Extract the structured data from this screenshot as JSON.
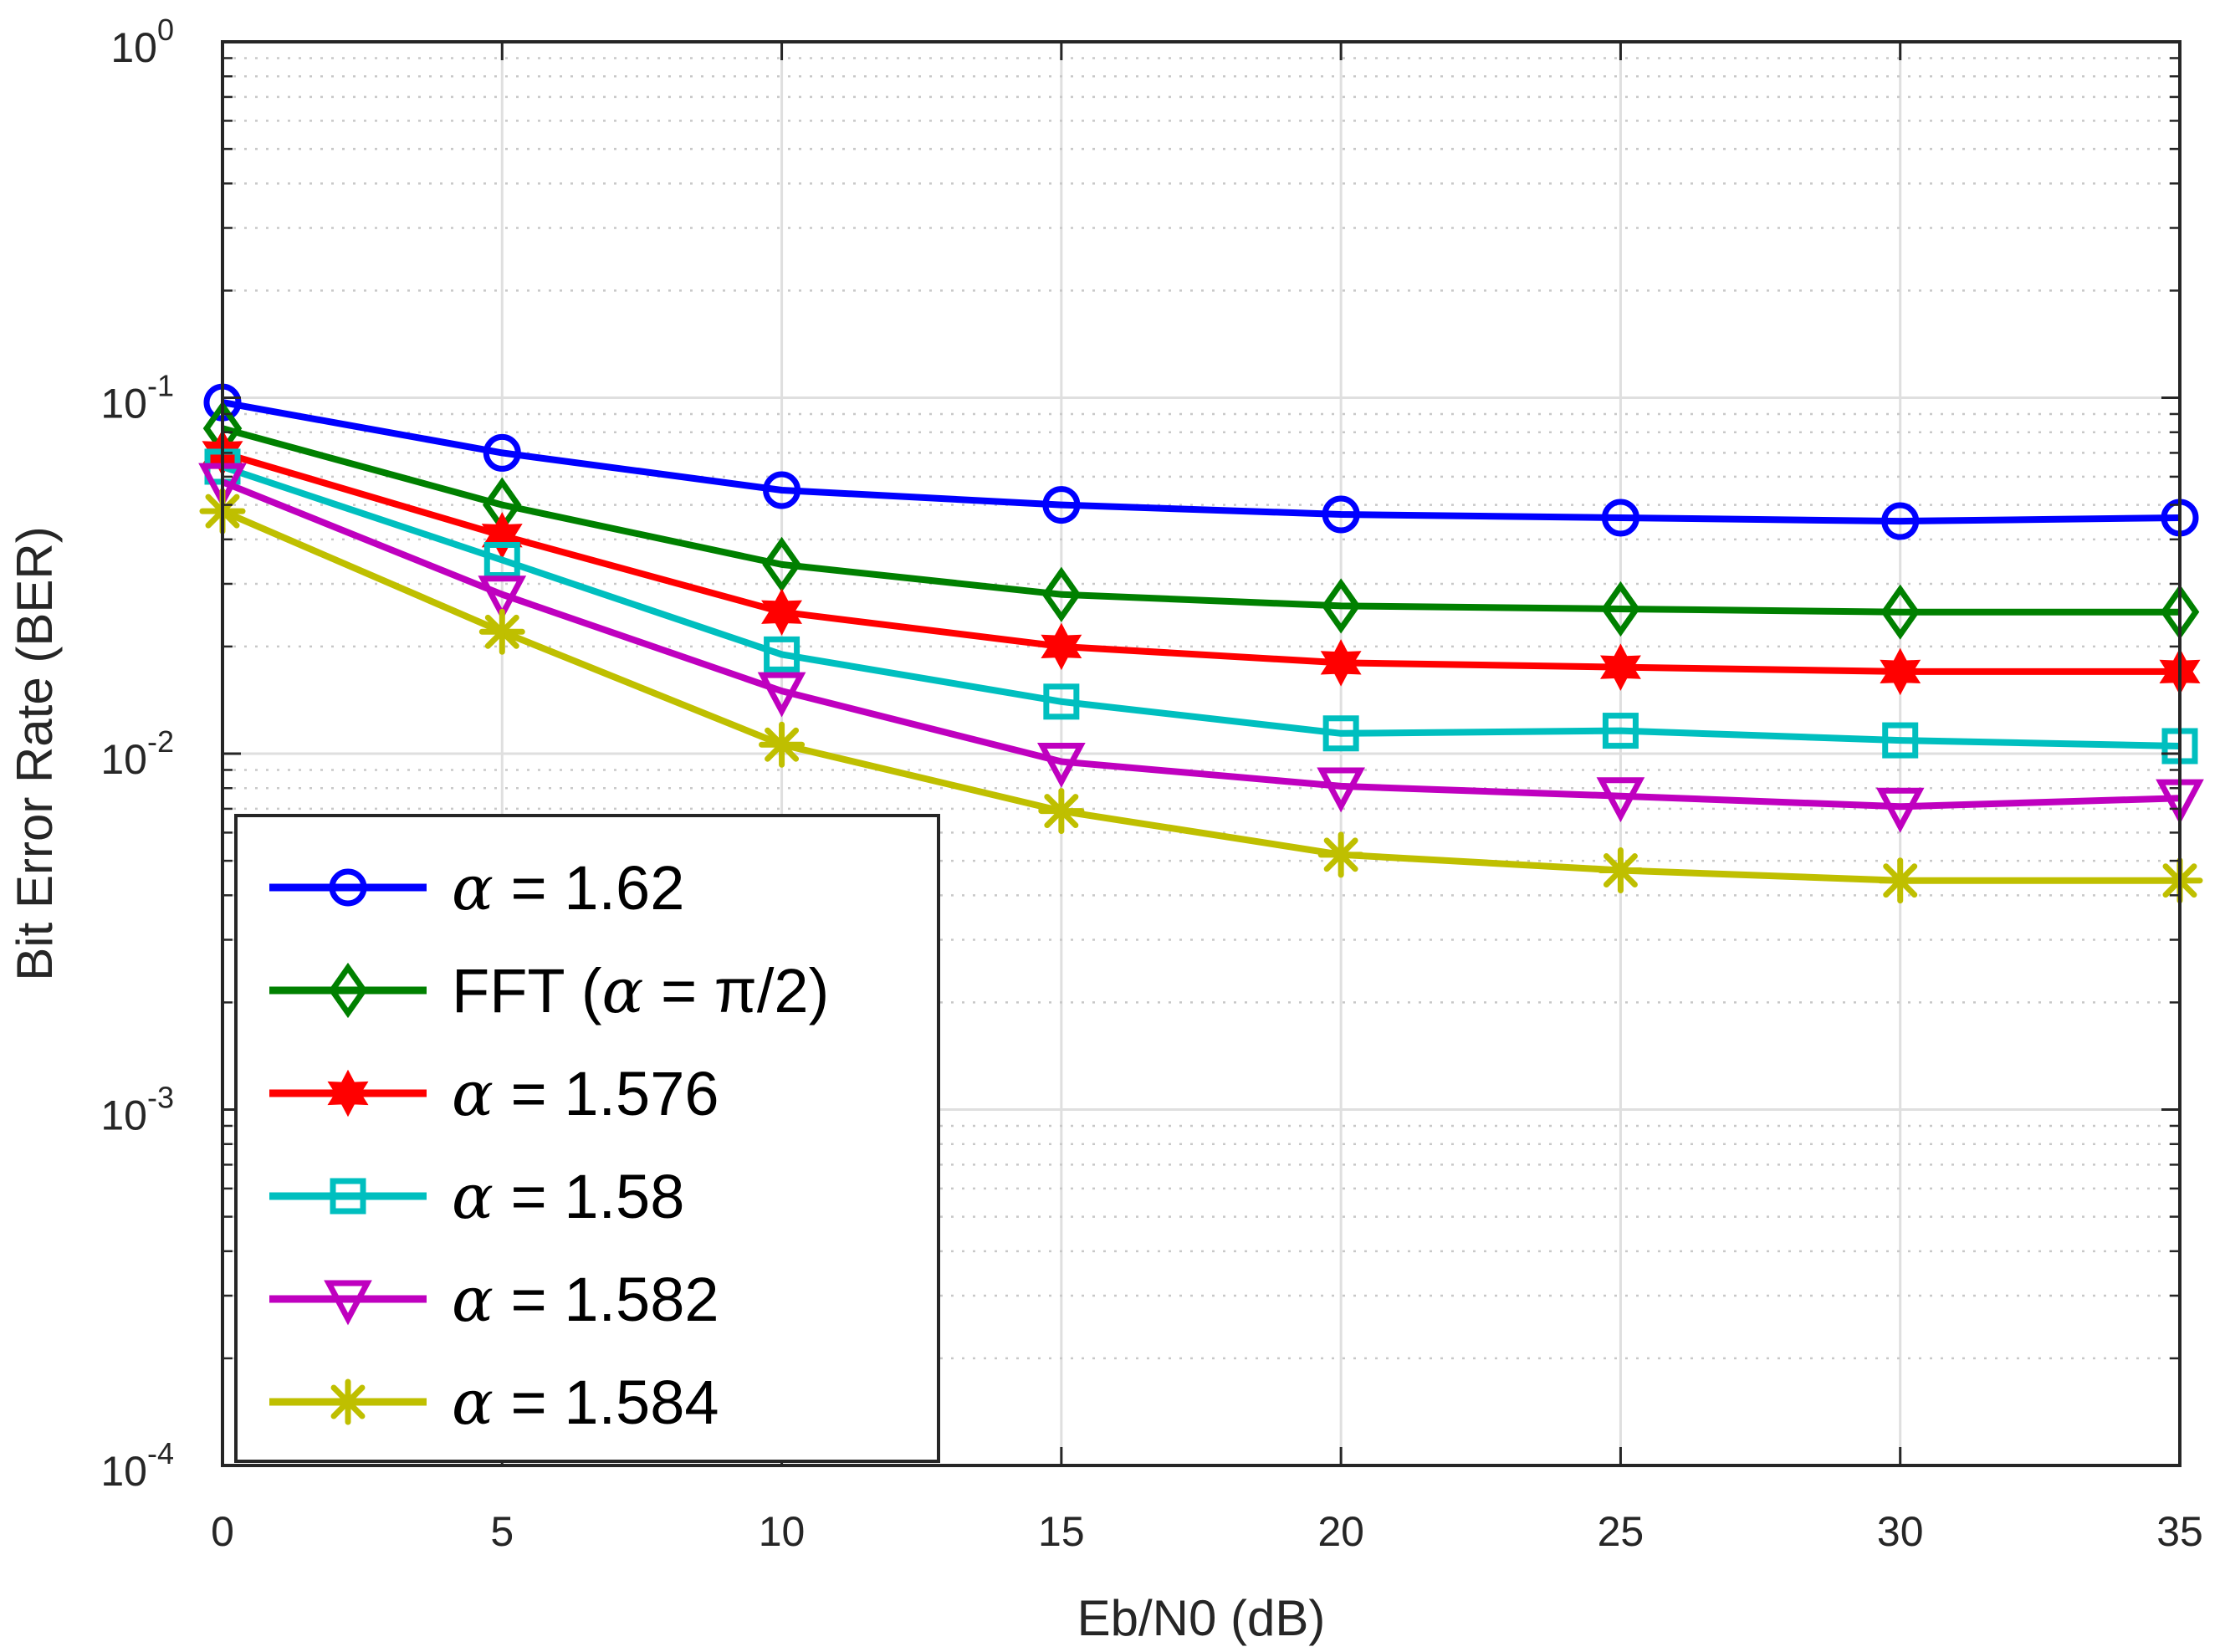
{
  "chart_data": {
    "type": "line",
    "title": "",
    "xlabel": "Eb/N0 (dB)",
    "ylabel": "Bit Error Rate (BER)",
    "xlim": [
      0,
      35
    ],
    "ylim": [
      0.0001,
      1
    ],
    "yscale": "log",
    "grid": true,
    "x": [
      0,
      5,
      10,
      15,
      20,
      25,
      30,
      35
    ],
    "x_ticks": [
      "0",
      "5",
      "10",
      "15",
      "20",
      "25",
      "30",
      "35"
    ],
    "y_ticks": [
      {
        "base": "10",
        "exp": "0"
      },
      {
        "base": "10",
        "exp": "-1"
      },
      {
        "base": "10",
        "exp": "-2"
      },
      {
        "base": "10",
        "exp": "-3"
      },
      {
        "base": "10",
        "exp": "-4"
      }
    ],
    "legend_position": "bottom-left",
    "series": [
      {
        "name": "α = 1.62",
        "legend_pre": "",
        "legend_greek": "α",
        "legend_post": " = 1.62",
        "color": "#0000ff",
        "marker": "circle",
        "values": [
          0.097,
          0.07,
          0.055,
          0.05,
          0.047,
          0.046,
          0.045,
          0.046
        ]
      },
      {
        "name": "FFT (α = π/2)",
        "legend_pre": "FFT (",
        "legend_greek": "α",
        "legend_post": " = π/2)",
        "color": "#008000",
        "marker": "diamond",
        "values": [
          0.082,
          0.05,
          0.034,
          0.028,
          0.026,
          0.0255,
          0.025,
          0.025
        ]
      },
      {
        "name": "α = 1.576",
        "legend_pre": "",
        "legend_greek": "α",
        "legend_post": " = 1.576",
        "color": "#ff0000",
        "marker": "hexagram",
        "values": [
          0.07,
          0.041,
          0.025,
          0.02,
          0.018,
          0.0175,
          0.017,
          0.017
        ]
      },
      {
        "name": "α = 1.58",
        "legend_pre": "",
        "legend_greek": "α",
        "legend_post": " = 1.58",
        "color": "#00bfbf",
        "marker": "square",
        "values": [
          0.064,
          0.035,
          0.019,
          0.014,
          0.0114,
          0.0116,
          0.0109,
          0.0105
        ]
      },
      {
        "name": "α = 1.582",
        "legend_pre": "",
        "legend_greek": "α",
        "legend_post": " = 1.582",
        "color": "#bf00bf",
        "marker": "triangle-down",
        "values": [
          0.058,
          0.028,
          0.015,
          0.0095,
          0.0081,
          0.0076,
          0.0071,
          0.0075
        ]
      },
      {
        "name": "α = 1.584",
        "legend_pre": "",
        "legend_greek": "α",
        "legend_post": " = 1.584",
        "color": "#bfbf00",
        "marker": "asterisk",
        "values": [
          0.048,
          0.022,
          0.0106,
          0.0069,
          0.0052,
          0.0047,
          0.0044,
          0.0044
        ]
      }
    ]
  }
}
